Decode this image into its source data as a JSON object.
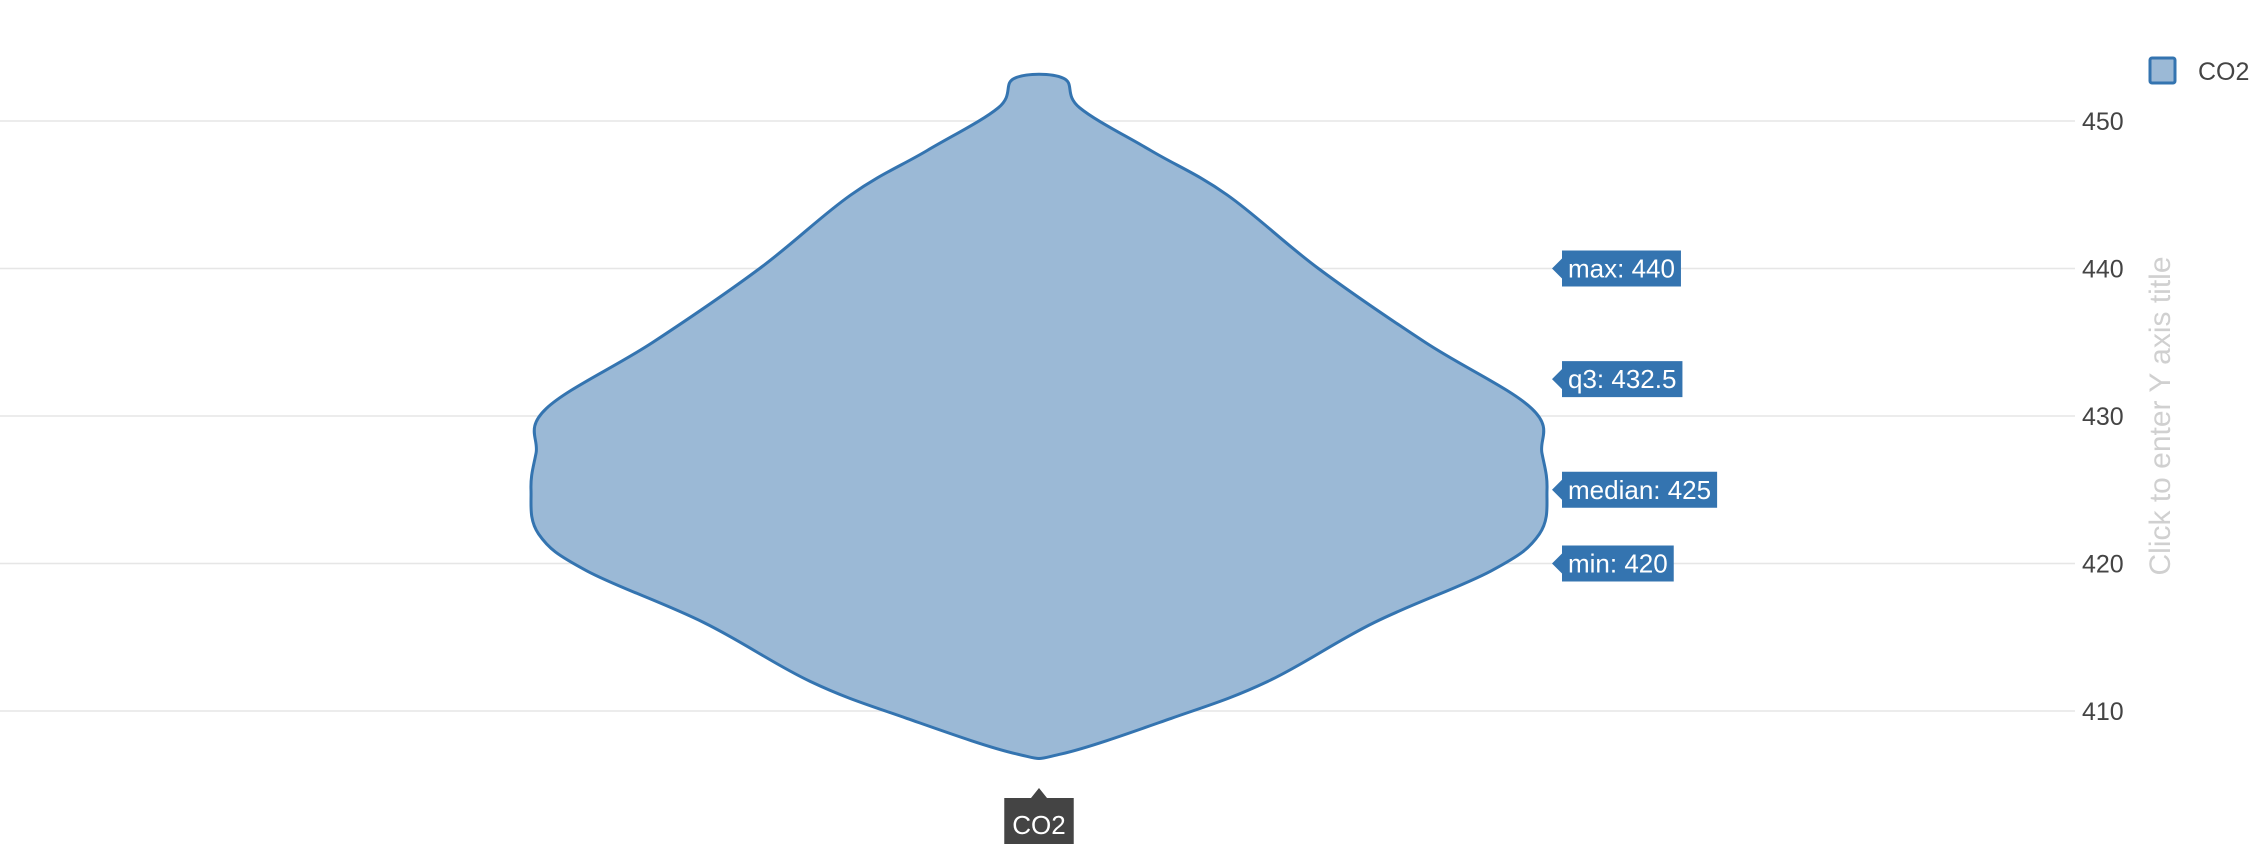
{
  "chart_data": {
    "type": "violin",
    "series": [
      {
        "name": "CO2",
        "category": "CO2",
        "stats": {
          "min": 420,
          "median": 425,
          "q3": 432.5,
          "max": 440
        },
        "span": [
          407.1,
          452.9
        ]
      }
    ],
    "yticks": [
      410,
      420,
      430,
      440,
      450
    ],
    "ylim": [
      405,
      455
    ],
    "y_axis_side": "right",
    "y_axis_title_placeholder": "Click to enter Y axis title",
    "grid": true,
    "legend": {
      "position": "top-right",
      "entries": [
        "CO2"
      ]
    },
    "hover_labels": [
      {
        "text": "max: 440",
        "y": 440
      },
      {
        "text": "q3: 432.5",
        "y": 432.5
      },
      {
        "text": "median: 425",
        "y": 425
      },
      {
        "text": "min: 420",
        "y": 420
      }
    ],
    "x_hover_label": "CO2",
    "colors": {
      "fill": "#9bb9d6",
      "line": "#3474b0",
      "label_bg": "#3474b0",
      "x_label_bg": "#444444"
    }
  }
}
